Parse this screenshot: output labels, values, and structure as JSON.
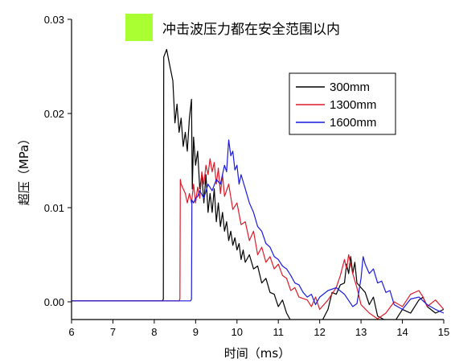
{
  "chart_data": {
    "type": "line",
    "title": "",
    "xlabel": "时间（ms）",
    "ylabel": "超压（MPa）",
    "xlim": [
      6,
      15
    ],
    "ylim": [
      -0.002,
      0.03
    ],
    "x_ticks": [
      6,
      7,
      8,
      9,
      10,
      11,
      12,
      13,
      14,
      15
    ],
    "x_tick_labels": [
      "6",
      "7",
      "8",
      "9",
      "10",
      "11",
      "12",
      "13",
      "14",
      "15"
    ],
    "y_ticks": [
      0,
      0.01,
      0.02,
      0.03
    ],
    "y_tick_labels": [
      "0.00",
      "0.01",
      "0.02",
      "0.03"
    ],
    "grid": false,
    "legend_placement": "top-right",
    "annotation": {
      "text": "冲击波压力都在安全范围以内",
      "marker_color": "#aaff33"
    },
    "series": [
      {
        "name": "300mm",
        "color": "#000000",
        "points": [
          [
            6.0,
            0.0001
          ],
          [
            8.2,
            0.0001
          ],
          [
            8.22,
            0.0003
          ],
          [
            8.23,
            0.026
          ],
          [
            8.3,
            0.0268
          ],
          [
            8.38,
            0.025
          ],
          [
            8.45,
            0.0235
          ],
          [
            8.5,
            0.019
          ],
          [
            8.55,
            0.021
          ],
          [
            8.6,
            0.018
          ],
          [
            8.65,
            0.0195
          ],
          [
            8.7,
            0.0165
          ],
          [
            8.75,
            0.018
          ],
          [
            8.8,
            0.016
          ],
          [
            8.85,
            0.0195
          ],
          [
            8.9,
            0.0215
          ],
          [
            8.92,
            0.012
          ],
          [
            8.95,
            0.0175
          ],
          [
            9.0,
            0.0145
          ],
          [
            9.05,
            0.016
          ],
          [
            9.1,
            0.012
          ],
          [
            9.15,
            0.0135
          ],
          [
            9.2,
            0.0105
          ],
          [
            9.25,
            0.0135
          ],
          [
            9.3,
            0.0095
          ],
          [
            9.35,
            0.0115
          ],
          [
            9.4,
            0.0095
          ],
          [
            9.45,
            0.012
          ],
          [
            9.5,
            0.0085
          ],
          [
            9.55,
            0.0105
          ],
          [
            9.6,
            0.008
          ],
          [
            9.65,
            0.0095
          ],
          [
            9.7,
            0.0075
          ],
          [
            9.75,
            0.0085
          ],
          [
            9.8,
            0.0065
          ],
          [
            9.85,
            0.0075
          ],
          [
            9.9,
            0.006
          ],
          [
            9.95,
            0.0068
          ],
          [
            10.0,
            0.0055
          ],
          [
            10.05,
            0.0062
          ],
          [
            10.1,
            0.0045
          ],
          [
            10.15,
            0.0055
          ],
          [
            10.2,
            0.0042
          ],
          [
            10.3,
            0.005
          ],
          [
            10.4,
            0.0035
          ],
          [
            10.5,
            0.0038
          ],
          [
            10.6,
            0.002
          ],
          [
            10.7,
            0.0025
          ],
          [
            10.8,
            0.001
          ],
          [
            10.9,
            0.0008
          ],
          [
            11.0,
            -0.0005
          ],
          [
            11.1,
            0.0002
          ],
          [
            11.2,
            -0.0012
          ],
          [
            11.3,
            -0.002
          ],
          [
            11.5,
            -0.0025
          ],
          [
            11.8,
            -0.003
          ],
          [
            12.0,
            -0.0025
          ],
          [
            12.2,
            -0.0008
          ],
          [
            12.3,
            0.001
          ],
          [
            12.4,
            0.0008
          ],
          [
            12.5,
            0.0018
          ],
          [
            12.6,
            0.002
          ],
          [
            12.65,
            0.004
          ],
          [
            12.7,
            0.003
          ],
          [
            12.75,
            0.0048
          ],
          [
            12.8,
            0.003
          ],
          [
            12.85,
            0.0042
          ],
          [
            12.9,
            0.002
          ],
          [
            13.0,
            0.0015
          ],
          [
            13.1,
            0.001
          ],
          [
            13.2,
            -0.0003
          ],
          [
            13.3,
            0.0005
          ],
          [
            13.4,
            -0.0015
          ],
          [
            13.6,
            -0.002
          ],
          [
            13.8,
            -0.0022
          ],
          [
            14.0,
            -0.0008
          ],
          [
            14.2,
            -0.0012
          ],
          [
            14.4,
            0.0002
          ],
          [
            14.5,
            0.0005
          ],
          [
            14.6,
            -0.0005
          ],
          [
            14.8,
            -0.0012
          ],
          [
            15.0,
            -0.0008
          ]
        ]
      },
      {
        "name": "1300mm",
        "color": "#dd1a2a",
        "points": [
          [
            6.0,
            0.0001
          ],
          [
            8.6,
            0.0001
          ],
          [
            8.62,
            0.0003
          ],
          [
            8.63,
            0.013
          ],
          [
            8.65,
            0.0125
          ],
          [
            8.7,
            0.012
          ],
          [
            8.75,
            0.0115
          ],
          [
            8.8,
            0.0105
          ],
          [
            8.85,
            0.0115
          ],
          [
            8.9,
            0.0105
          ],
          [
            8.95,
            0.0125
          ],
          [
            9.0,
            0.0105
          ],
          [
            9.05,
            0.0122
          ],
          [
            9.1,
            0.011
          ],
          [
            9.15,
            0.0138
          ],
          [
            9.2,
            0.0125
          ],
          [
            9.25,
            0.0145
          ],
          [
            9.3,
            0.0135
          ],
          [
            9.35,
            0.0152
          ],
          [
            9.4,
            0.0138
          ],
          [
            9.45,
            0.0148
          ],
          [
            9.5,
            0.0125
          ],
          [
            9.55,
            0.0142
          ],
          [
            9.6,
            0.0115
          ],
          [
            9.65,
            0.0135
          ],
          [
            9.7,
            0.0112
          ],
          [
            9.8,
            0.0125
          ],
          [
            9.9,
            0.0098
          ],
          [
            10.0,
            0.0105
          ],
          [
            10.1,
            0.0082
          ],
          [
            10.2,
            0.0085
          ],
          [
            10.3,
            0.0065
          ],
          [
            10.4,
            0.0075
          ],
          [
            10.5,
            0.005
          ],
          [
            10.6,
            0.0058
          ],
          [
            10.7,
            0.0042
          ],
          [
            10.8,
            0.0048
          ],
          [
            10.9,
            0.0035
          ],
          [
            11.0,
            0.004
          ],
          [
            11.1,
            0.0028
          ],
          [
            11.2,
            0.0025
          ],
          [
            11.3,
            0.0012
          ],
          [
            11.4,
            0.0015
          ],
          [
            11.5,
            0.0005
          ],
          [
            11.7,
            0.0002
          ],
          [
            11.8,
            -0.0005
          ],
          [
            11.9,
            0.0005
          ],
          [
            12.0,
            -0.0008
          ],
          [
            12.2,
            0.0002
          ],
          [
            12.4,
            0.0015
          ],
          [
            12.5,
            0.0028
          ],
          [
            12.6,
            0.0045
          ],
          [
            12.65,
            0.0035
          ],
          [
            12.7,
            0.005
          ],
          [
            12.8,
            0.003
          ],
          [
            12.9,
            0.0015
          ],
          [
            13.0,
            -0.0003
          ],
          [
            13.2,
            -0.0012
          ],
          [
            13.4,
            -0.0018
          ],
          [
            13.6,
            -0.0012
          ],
          [
            13.8,
            0.0
          ],
          [
            14.0,
            -0.0005
          ],
          [
            14.2,
            0.0008
          ],
          [
            14.4,
            0.0012
          ],
          [
            14.5,
            0.0005
          ],
          [
            14.6,
            -0.0005
          ],
          [
            14.8,
            0.0002
          ],
          [
            15.0,
            -0.0008
          ]
        ]
      },
      {
        "name": "1600mm",
        "color": "#1a1ae0",
        "points": [
          [
            6.0,
            0.0001
          ],
          [
            8.88,
            0.0001
          ],
          [
            8.9,
            0.0003
          ],
          [
            8.91,
            0.0108
          ],
          [
            8.95,
            0.0105
          ],
          [
            9.0,
            0.011
          ],
          [
            9.05,
            0.0112
          ],
          [
            9.1,
            0.0118
          ],
          [
            9.2,
            0.011
          ],
          [
            9.3,
            0.0125
          ],
          [
            9.4,
            0.0118
          ],
          [
            9.5,
            0.013
          ],
          [
            9.6,
            0.0125
          ],
          [
            9.7,
            0.0145
          ],
          [
            9.75,
            0.0138
          ],
          [
            9.8,
            0.0172
          ],
          [
            9.85,
            0.0155
          ],
          [
            9.9,
            0.016
          ],
          [
            9.95,
            0.014
          ],
          [
            10.0,
            0.0145
          ],
          [
            10.05,
            0.0125
          ],
          [
            10.1,
            0.0135
          ],
          [
            10.2,
            0.012
          ],
          [
            10.3,
            0.0105
          ],
          [
            10.4,
            0.0095
          ],
          [
            10.5,
            0.008
          ],
          [
            10.6,
            0.0075
          ],
          [
            10.7,
            0.0062
          ],
          [
            10.8,
            0.0058
          ],
          [
            10.9,
            0.0048
          ],
          [
            11.0,
            0.0045
          ],
          [
            11.1,
            0.0038
          ],
          [
            11.2,
            0.0035
          ],
          [
            11.3,
            0.0028
          ],
          [
            11.4,
            0.002
          ],
          [
            11.5,
            0.0018
          ],
          [
            11.6,
            0.001
          ],
          [
            11.7,
            0.0005
          ],
          [
            11.8,
            0.0008
          ],
          [
            11.9,
            -0.0003
          ],
          [
            12.0,
            0.0005
          ],
          [
            12.2,
            0.0012
          ],
          [
            12.4,
            0.0015
          ],
          [
            12.6,
            0.0008
          ],
          [
            12.8,
            -0.0005
          ],
          [
            12.9,
            -0.0002
          ],
          [
            13.0,
            0.0025
          ],
          [
            13.05,
            0.0048
          ],
          [
            13.1,
            0.004
          ],
          [
            13.2,
            0.003
          ],
          [
            13.3,
            0.0035
          ],
          [
            13.4,
            0.002
          ],
          [
            13.5,
            0.0022
          ],
          [
            13.6,
            0.001
          ],
          [
            13.7,
            0.0012
          ],
          [
            13.8,
            -0.0003
          ],
          [
            14.0,
            -0.0008
          ],
          [
            14.2,
            0.0003
          ],
          [
            14.4,
            0.0005
          ],
          [
            14.6,
            -0.0003
          ],
          [
            14.8,
            -0.0008
          ],
          [
            15.0,
            -0.0012
          ]
        ]
      }
    ]
  }
}
